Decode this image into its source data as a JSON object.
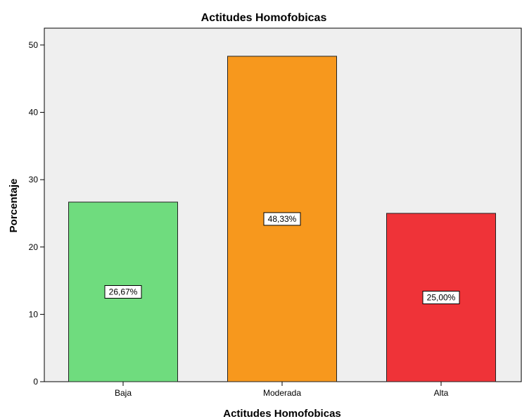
{
  "chart_data": {
    "type": "bar",
    "title": "Actitudes Homofobicas",
    "xlabel": "Actitudes Homofobicas",
    "ylabel": "Porcentaje",
    "categories": [
      "Baja",
      "Moderada",
      "Alta"
    ],
    "values": [
      26.67,
      48.33,
      25.0
    ],
    "data_labels": [
      "26,67%",
      "48,33%",
      "25,00%"
    ],
    "bar_colors": [
      "#6fdc7e",
      "#f7981d",
      "#ef3338"
    ],
    "ylim": [
      0,
      52.5
    ],
    "yticks": [
      0,
      10,
      20,
      30,
      40,
      50
    ],
    "ytick_labels": [
      "0",
      "10",
      "20",
      "30",
      "40",
      "50"
    ],
    "grid": false,
    "plot_background": "#efefef"
  }
}
